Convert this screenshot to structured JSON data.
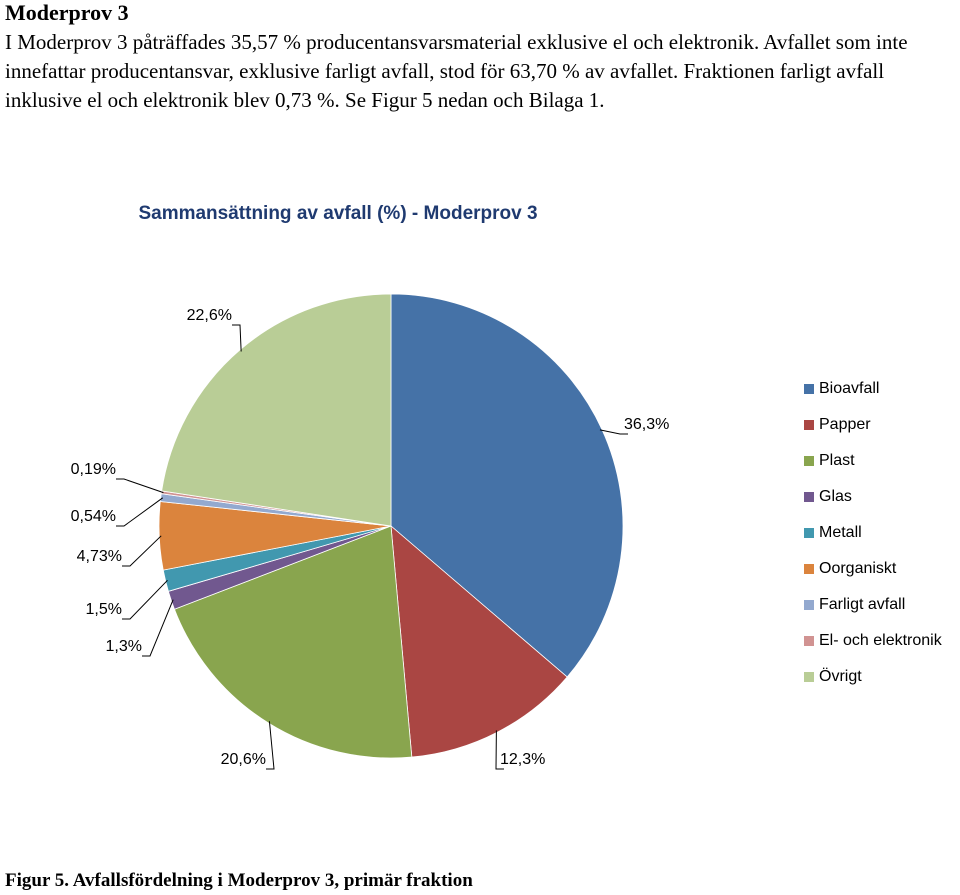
{
  "heading": "Moderprov 3",
  "paragraph": "I Moderprov 3 påträffades 35,57 % producentansvarsmaterial exklusive el och elektronik. Avfallet som inte innefattar producentansvar, exklusive farligt avfall, stod för 63,70 % av avfallet. Fraktionen farligt avfall inklusive el och elektronik blev 0,73 %. Se Figur 5 nedan och Bilaga 1.",
  "chart_data": {
    "type": "pie",
    "title": "Sammansättning av avfall (%) - Moderprov 3",
    "categories": [
      "Bioavfall",
      "Papper",
      "Plast",
      "Glas",
      "Metall",
      "Oorganiskt",
      "Farligt avfall",
      "El- och elektronik",
      "Övrigt"
    ],
    "values": [
      36.3,
      12.3,
      20.6,
      1.3,
      1.5,
      4.73,
      0.54,
      0.19,
      22.6
    ],
    "value_labels": [
      "36,3%",
      "12,3%",
      "20,6%",
      "1,3%",
      "1,5%",
      "4,73%",
      "0,54%",
      "0,19%",
      "22,6%"
    ],
    "colors": [
      "#4572a7",
      "#aa4643",
      "#89a54e",
      "#71588f",
      "#4198af",
      "#db843d",
      "#93a9cf",
      "#d19392",
      "#b9cd96"
    ],
    "legend": "right"
  },
  "caption": "Figur 5. Avfallsfördelning i Moderprov 3, primär fraktion"
}
